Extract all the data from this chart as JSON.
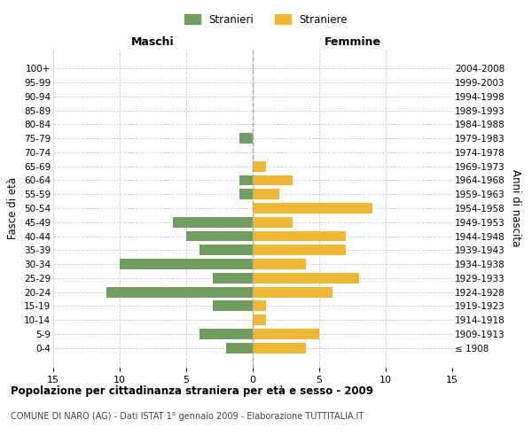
{
  "age_groups": [
    "100+",
    "95-99",
    "90-94",
    "85-89",
    "80-84",
    "75-79",
    "70-74",
    "65-69",
    "60-64",
    "55-59",
    "50-54",
    "45-49",
    "40-44",
    "35-39",
    "30-34",
    "25-29",
    "20-24",
    "15-19",
    "10-14",
    "5-9",
    "0-4"
  ],
  "birth_years": [
    "≤ 1908",
    "1909-1913",
    "1914-1918",
    "1919-1923",
    "1924-1928",
    "1929-1933",
    "1934-1938",
    "1939-1943",
    "1944-1948",
    "1949-1953",
    "1954-1958",
    "1959-1963",
    "1964-1968",
    "1969-1973",
    "1974-1978",
    "1979-1983",
    "1984-1988",
    "1989-1993",
    "1994-1998",
    "1999-2003",
    "2004-2008"
  ],
  "maschi": [
    0,
    0,
    0,
    0,
    0,
    1,
    0,
    0,
    1,
    1,
    0,
    6,
    5,
    4,
    10,
    3,
    11,
    3,
    0,
    4,
    2
  ],
  "femmine": [
    0,
    0,
    0,
    0,
    0,
    0,
    0,
    1,
    3,
    2,
    9,
    3,
    7,
    7,
    4,
    8,
    6,
    1,
    1,
    5,
    4
  ],
  "maschi_color": "#6f9e5e",
  "femmine_color": "#f0b832",
  "title": "Popolazione per cittadinanza straniera per età e sesso - 2009",
  "subtitle": "COMUNE DI NARO (AG) - Dati ISTAT 1° gennaio 2009 - Elaborazione TUTTITALIA.IT",
  "xlabel_left": "Maschi",
  "xlabel_right": "Femmine",
  "ylabel_left": "Fasce di età",
  "ylabel_right": "Anni di nascita",
  "legend_maschi": "Stranieri",
  "legend_femmine": "Straniere",
  "xlim": 15,
  "background_color": "#ffffff",
  "grid_color": "#cccccc"
}
